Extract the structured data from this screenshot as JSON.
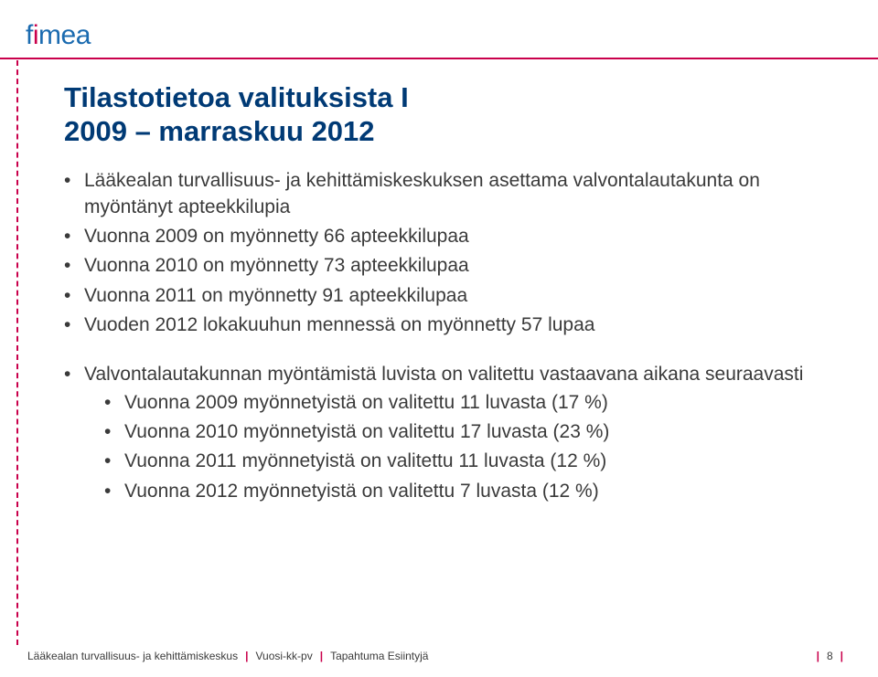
{
  "logo": {
    "name": "fimea",
    "text_color": "#1b6bb0",
    "dot_color": "#c9004b"
  },
  "accent_color": "#c9004b",
  "title_color": "#003a75",
  "body_color": "#3a3a3a",
  "title_line1": "Tilastotietoa valituksista I",
  "title_line2": "2009 – marraskuu 2012",
  "block1": {
    "items": [
      "Lääkealan turvallisuus- ja kehittämiskeskuksen asettama valvontalautakunta on myöntänyt apteekkilupia",
      "Vuonna 2009 on myönnetty 66 apteekkilupaa",
      "Vuonna 2010 on myönnetty 73 apteekkilupaa",
      "Vuonna 2011 on myönnetty 91 apteekkilupaa",
      "Vuoden 2012 lokakuuhun mennessä on myönnetty 57 lupaa"
    ]
  },
  "block2": {
    "lead": "Valvontalautakunnan myöntämistä luvista on valitettu vastaavana aikana seuraavasti",
    "sub": [
      "Vuonna 2009 myönnetyistä on valitettu 11 luvasta (17 %)",
      "Vuonna 2010 myönnetyistä on valitettu 17 luvasta (23 %)",
      "Vuonna 2011 myönnetyistä on valitettu 11 luvasta (12 %)",
      "Vuonna 2012 myönnetyistä on valitettu 7 luvasta (12 %)"
    ]
  },
  "footer": {
    "left0": "Lääkealan turvallisuus- ja kehittämiskeskus",
    "left1": "Vuosi-kk-pv",
    "left2": "Tapahtuma Esiintyjä",
    "page": "8"
  }
}
